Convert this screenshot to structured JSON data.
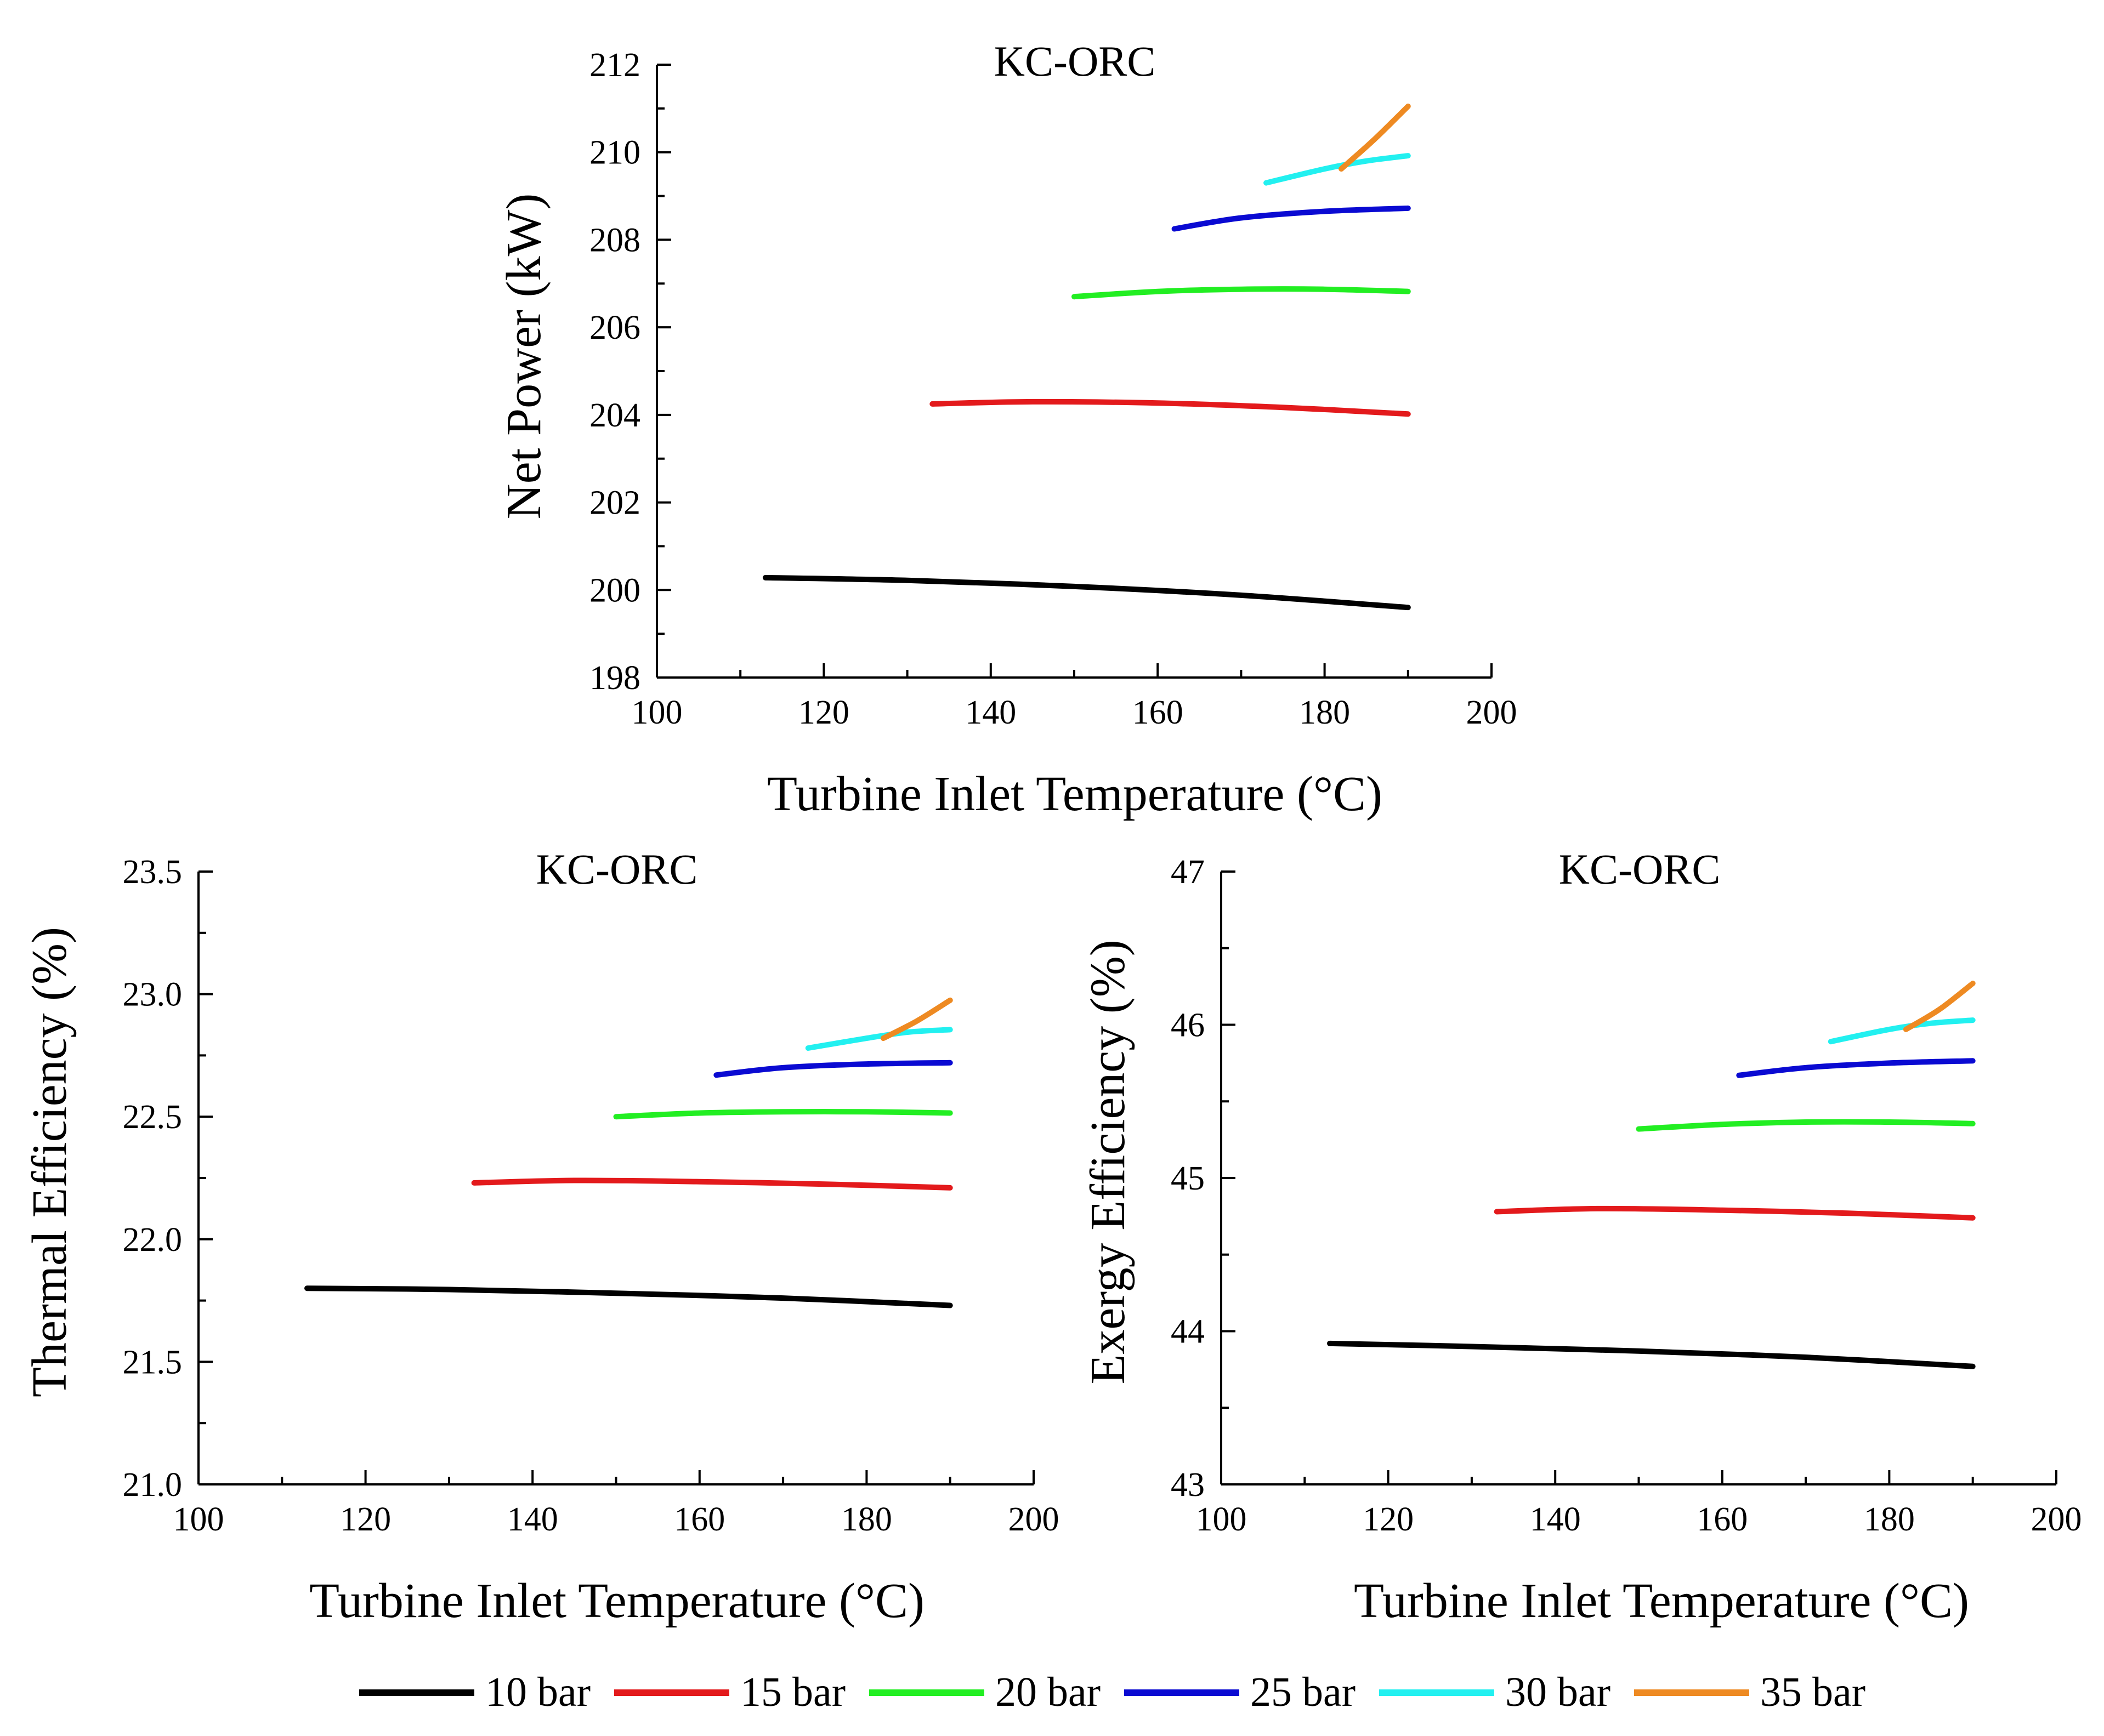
{
  "legend": {
    "entries": [
      {
        "name": "10 bar",
        "color": "#000000"
      },
      {
        "name": "15 bar",
        "color": "#e31a1c"
      },
      {
        "name": "20 bar",
        "color": "#22ee22"
      },
      {
        "name": "25 bar",
        "color": "#0a0ad2"
      },
      {
        "name": "30 bar",
        "color": "#22f0f0"
      },
      {
        "name": "35 bar",
        "color": "#ee8a22"
      }
    ]
  },
  "chart_data": [
    {
      "id": "net-power",
      "type": "line",
      "title": "KC-ORC",
      "xlabel": "Turbine Inlet Temperature (°C)",
      "ylabel": "Net Power (kW)",
      "xlim": [
        100,
        200
      ],
      "ylim": [
        198,
        212
      ],
      "xticks": [
        100,
        120,
        140,
        160,
        180,
        200
      ],
      "yticks": [
        198,
        200,
        202,
        204,
        206,
        208,
        210,
        212
      ],
      "xtick_labels": [
        "100",
        "120",
        "140",
        "160",
        "180",
        "200"
      ],
      "ytick_labels": [
        "198",
        "200",
        "202",
        "204",
        "206",
        "208",
        "210",
        "212"
      ],
      "series": [
        {
          "name": "10 bar",
          "color": "#000000",
          "x": [
            113,
            130,
            150,
            170,
            190
          ],
          "y": [
            200.28,
            200.22,
            200.08,
            199.88,
            199.6
          ]
        },
        {
          "name": "15 bar",
          "color": "#e31a1c",
          "x": [
            133,
            145,
            160,
            175,
            190
          ],
          "y": [
            204.25,
            204.3,
            204.27,
            204.17,
            204.02
          ]
        },
        {
          "name": "20 bar",
          "color": "#22ee22",
          "x": [
            150,
            160,
            170,
            180,
            190
          ],
          "y": [
            206.7,
            206.82,
            206.87,
            206.87,
            206.82
          ]
        },
        {
          "name": "25 bar",
          "color": "#0a0ad2",
          "x": [
            162,
            170,
            180,
            190
          ],
          "y": [
            208.25,
            208.5,
            208.65,
            208.72
          ]
        },
        {
          "name": "30 bar",
          "color": "#22f0f0",
          "x": [
            173,
            180,
            185,
            190
          ],
          "y": [
            209.3,
            209.62,
            209.8,
            209.92
          ]
        },
        {
          "name": "35 bar",
          "color": "#ee8a22",
          "x": [
            182,
            186,
            190
          ],
          "y": [
            209.62,
            210.3,
            211.05
          ]
        }
      ]
    },
    {
      "id": "thermal-efficiency",
      "type": "line",
      "title": "KC-ORC",
      "xlabel": "Turbine Inlet Temperature (°C)",
      "ylabel": "Thermal Efficiency (%)",
      "xlim": [
        100,
        200
      ],
      "ylim": [
        21.0,
        23.5
      ],
      "xticks": [
        100,
        120,
        140,
        160,
        180,
        200
      ],
      "yticks": [
        21.0,
        21.5,
        22.0,
        22.5,
        23.0,
        23.5
      ],
      "xtick_labels": [
        "100",
        "120",
        "140",
        "160",
        "180",
        "200"
      ],
      "ytick_labels": [
        "21.0",
        "21.5",
        "22.0",
        "22.5",
        "23.0",
        "23.5"
      ],
      "series": [
        {
          "name": "10 bar",
          "color": "#000000",
          "x": [
            113,
            130,
            150,
            170,
            190
          ],
          "y": [
            21.8,
            21.795,
            21.78,
            21.76,
            21.73
          ]
        },
        {
          "name": "15 bar",
          "color": "#e31a1c",
          "x": [
            133,
            145,
            160,
            175,
            190
          ],
          "y": [
            22.23,
            22.24,
            22.235,
            22.225,
            22.21
          ]
        },
        {
          "name": "20 bar",
          "color": "#22ee22",
          "x": [
            150,
            160,
            170,
            180,
            190
          ],
          "y": [
            22.5,
            22.515,
            22.52,
            22.52,
            22.515
          ]
        },
        {
          "name": "25 bar",
          "color": "#0a0ad2",
          "x": [
            162,
            170,
            180,
            190
          ],
          "y": [
            22.67,
            22.7,
            22.715,
            22.72
          ]
        },
        {
          "name": "30 bar",
          "color": "#22f0f0",
          "x": [
            173,
            180,
            185,
            190
          ],
          "y": [
            22.78,
            22.82,
            22.845,
            22.855
          ]
        },
        {
          "name": "35 bar",
          "color": "#ee8a22",
          "x": [
            182,
            186,
            190
          ],
          "y": [
            22.82,
            22.89,
            22.975
          ]
        }
      ]
    },
    {
      "id": "exergy-efficiency",
      "type": "line",
      "title": "KC-ORC",
      "xlabel": "Turbine Inlet Temperature (°C)",
      "ylabel": "Exergy Efficiency (%)",
      "xlim": [
        100,
        200
      ],
      "ylim": [
        43,
        47
      ],
      "xticks": [
        100,
        120,
        140,
        160,
        180,
        200
      ],
      "yticks": [
        43,
        44,
        45,
        46,
        47
      ],
      "xtick_labels": [
        "100",
        "120",
        "140",
        "160",
        "180",
        "200"
      ],
      "ytick_labels": [
        "43",
        "44",
        "45",
        "46",
        "47"
      ],
      "series": [
        {
          "name": "10 bar",
          "color": "#000000",
          "x": [
            113,
            130,
            150,
            170,
            190
          ],
          "y": [
            43.92,
            43.9,
            43.87,
            43.83,
            43.77
          ]
        },
        {
          "name": "15 bar",
          "color": "#e31a1c",
          "x": [
            133,
            145,
            160,
            175,
            190
          ],
          "y": [
            44.78,
            44.8,
            44.79,
            44.77,
            44.74
          ]
        },
        {
          "name": "20 bar",
          "color": "#22ee22",
          "x": [
            150,
            160,
            170,
            180,
            190
          ],
          "y": [
            45.32,
            45.35,
            45.365,
            45.365,
            45.355
          ]
        },
        {
          "name": "25 bar",
          "color": "#0a0ad2",
          "x": [
            162,
            170,
            180,
            190
          ],
          "y": [
            45.67,
            45.72,
            45.75,
            45.765
          ]
        },
        {
          "name": "30 bar",
          "color": "#22f0f0",
          "x": [
            173,
            180,
            185,
            190
          ],
          "y": [
            45.89,
            45.97,
            46.01,
            46.03
          ]
        },
        {
          "name": "35 bar",
          "color": "#ee8a22",
          "x": [
            182,
            186,
            190
          ],
          "y": [
            45.97,
            46.1,
            46.27
          ]
        }
      ]
    }
  ]
}
